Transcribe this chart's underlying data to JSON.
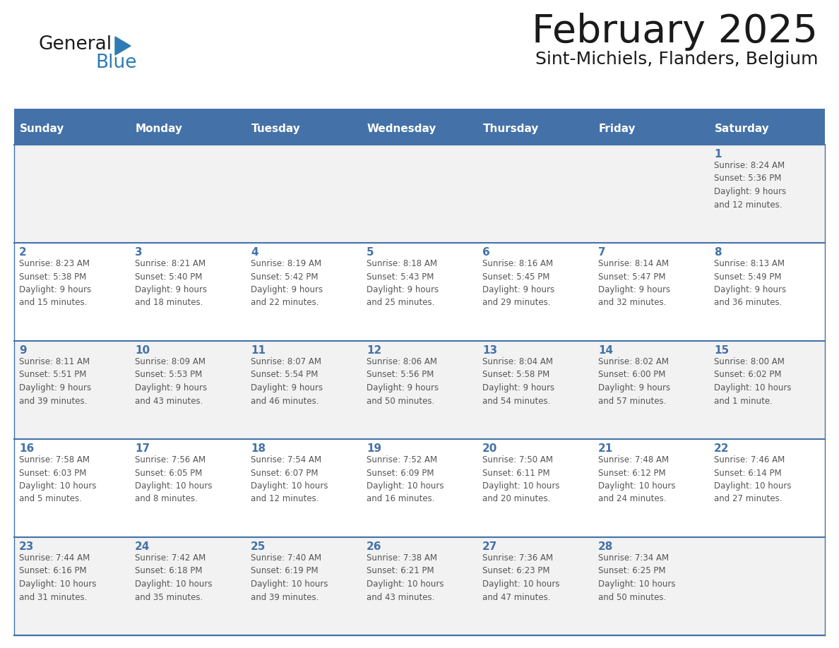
{
  "title": "February 2025",
  "subtitle": "Sint-Michiels, Flanders, Belgium",
  "days_of_week": [
    "Sunday",
    "Monday",
    "Tuesday",
    "Wednesday",
    "Thursday",
    "Friday",
    "Saturday"
  ],
  "header_bg": "#4472a8",
  "header_text": "#ffffff",
  "row0_bg": "#f2f2f2",
  "row1_bg": "#ffffff",
  "row2_bg": "#f2f2f2",
  "row3_bg": "#ffffff",
  "row4_bg": "#f2f2f2",
  "border_color": "#4472a8",
  "day_number_color": "#4472a8",
  "text_color": "#555555",
  "title_color": "#1a1a1a",
  "logo_general_color": "#1a1a1a",
  "logo_blue_color": "#2e7bb5",
  "calendar_data": [
    [
      {
        "day": "",
        "info": ""
      },
      {
        "day": "",
        "info": ""
      },
      {
        "day": "",
        "info": ""
      },
      {
        "day": "",
        "info": ""
      },
      {
        "day": "",
        "info": ""
      },
      {
        "day": "",
        "info": ""
      },
      {
        "day": "1",
        "info": "Sunrise: 8:24 AM\nSunset: 5:36 PM\nDaylight: 9 hours\nand 12 minutes."
      }
    ],
    [
      {
        "day": "2",
        "info": "Sunrise: 8:23 AM\nSunset: 5:38 PM\nDaylight: 9 hours\nand 15 minutes."
      },
      {
        "day": "3",
        "info": "Sunrise: 8:21 AM\nSunset: 5:40 PM\nDaylight: 9 hours\nand 18 minutes."
      },
      {
        "day": "4",
        "info": "Sunrise: 8:19 AM\nSunset: 5:42 PM\nDaylight: 9 hours\nand 22 minutes."
      },
      {
        "day": "5",
        "info": "Sunrise: 8:18 AM\nSunset: 5:43 PM\nDaylight: 9 hours\nand 25 minutes."
      },
      {
        "day": "6",
        "info": "Sunrise: 8:16 AM\nSunset: 5:45 PM\nDaylight: 9 hours\nand 29 minutes."
      },
      {
        "day": "7",
        "info": "Sunrise: 8:14 AM\nSunset: 5:47 PM\nDaylight: 9 hours\nand 32 minutes."
      },
      {
        "day": "8",
        "info": "Sunrise: 8:13 AM\nSunset: 5:49 PM\nDaylight: 9 hours\nand 36 minutes."
      }
    ],
    [
      {
        "day": "9",
        "info": "Sunrise: 8:11 AM\nSunset: 5:51 PM\nDaylight: 9 hours\nand 39 minutes."
      },
      {
        "day": "10",
        "info": "Sunrise: 8:09 AM\nSunset: 5:53 PM\nDaylight: 9 hours\nand 43 minutes."
      },
      {
        "day": "11",
        "info": "Sunrise: 8:07 AM\nSunset: 5:54 PM\nDaylight: 9 hours\nand 46 minutes."
      },
      {
        "day": "12",
        "info": "Sunrise: 8:06 AM\nSunset: 5:56 PM\nDaylight: 9 hours\nand 50 minutes."
      },
      {
        "day": "13",
        "info": "Sunrise: 8:04 AM\nSunset: 5:58 PM\nDaylight: 9 hours\nand 54 minutes."
      },
      {
        "day": "14",
        "info": "Sunrise: 8:02 AM\nSunset: 6:00 PM\nDaylight: 9 hours\nand 57 minutes."
      },
      {
        "day": "15",
        "info": "Sunrise: 8:00 AM\nSunset: 6:02 PM\nDaylight: 10 hours\nand 1 minute."
      }
    ],
    [
      {
        "day": "16",
        "info": "Sunrise: 7:58 AM\nSunset: 6:03 PM\nDaylight: 10 hours\nand 5 minutes."
      },
      {
        "day": "17",
        "info": "Sunrise: 7:56 AM\nSunset: 6:05 PM\nDaylight: 10 hours\nand 8 minutes."
      },
      {
        "day": "18",
        "info": "Sunrise: 7:54 AM\nSunset: 6:07 PM\nDaylight: 10 hours\nand 12 minutes."
      },
      {
        "day": "19",
        "info": "Sunrise: 7:52 AM\nSunset: 6:09 PM\nDaylight: 10 hours\nand 16 minutes."
      },
      {
        "day": "20",
        "info": "Sunrise: 7:50 AM\nSunset: 6:11 PM\nDaylight: 10 hours\nand 20 minutes."
      },
      {
        "day": "21",
        "info": "Sunrise: 7:48 AM\nSunset: 6:12 PM\nDaylight: 10 hours\nand 24 minutes."
      },
      {
        "day": "22",
        "info": "Sunrise: 7:46 AM\nSunset: 6:14 PM\nDaylight: 10 hours\nand 27 minutes."
      }
    ],
    [
      {
        "day": "23",
        "info": "Sunrise: 7:44 AM\nSunset: 6:16 PM\nDaylight: 10 hours\nand 31 minutes."
      },
      {
        "day": "24",
        "info": "Sunrise: 7:42 AM\nSunset: 6:18 PM\nDaylight: 10 hours\nand 35 minutes."
      },
      {
        "day": "25",
        "info": "Sunrise: 7:40 AM\nSunset: 6:19 PM\nDaylight: 10 hours\nand 39 minutes."
      },
      {
        "day": "26",
        "info": "Sunrise: 7:38 AM\nSunset: 6:21 PM\nDaylight: 10 hours\nand 43 minutes."
      },
      {
        "day": "27",
        "info": "Sunrise: 7:36 AM\nSunset: 6:23 PM\nDaylight: 10 hours\nand 47 minutes."
      },
      {
        "day": "28",
        "info": "Sunrise: 7:34 AM\nSunset: 6:25 PM\nDaylight: 10 hours\nand 50 minutes."
      },
      {
        "day": "",
        "info": ""
      }
    ]
  ]
}
